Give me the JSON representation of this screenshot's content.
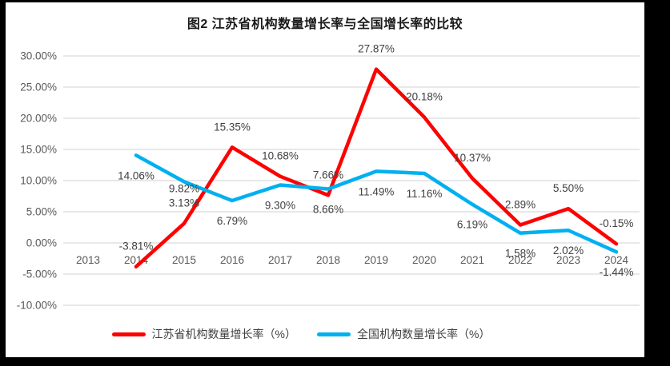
{
  "frame": {
    "background": "#000000"
  },
  "title": "图2  江苏省机构数量增长率与全国增长率的比较",
  "chart_data": {
    "type": "line",
    "categories": [
      "2013",
      "2014",
      "2015",
      "2016",
      "2017",
      "2018",
      "2019",
      "2020",
      "2021",
      "2022",
      "2023",
      "2024"
    ],
    "series": [
      {
        "name": "江苏省机构数量增长率（%）",
        "color": "#fe0000",
        "values": [
          null,
          -3.81,
          3.13,
          15.35,
          10.68,
          7.66,
          27.87,
          20.18,
          10.37,
          2.89,
          5.5,
          -0.15
        ],
        "data_labels": [
          "",
          "-3.81%",
          "3.13%",
          "15.35%",
          "10.68%",
          "7.66%",
          "27.87%",
          "20.18%",
          "10.37%",
          "2.89%",
          "5.50%",
          "-0.15%"
        ],
        "label_side": "above",
        "label_dy_overrides": {}
      },
      {
        "name": "全国机构数量增长率（%）",
        "color": "#00b0f0",
        "values": [
          null,
          14.06,
          9.82,
          6.79,
          9.3,
          8.66,
          11.49,
          11.16,
          6.19,
          1.58,
          2.02,
          -1.44
        ],
        "data_labels": [
          "",
          "14.06%",
          "9.82%",
          "6.79%",
          "9.30%",
          "8.66%",
          "11.49%",
          "11.16%",
          "6.19%",
          "1.58%",
          "2.02%",
          "-1.44%"
        ],
        "label_side": "below",
        "label_dy_overrides": {
          "2": 13
        }
      }
    ],
    "y_ticks": [
      {
        "label": "30.00%",
        "value": 30
      },
      {
        "label": "25.00%",
        "value": 25
      },
      {
        "label": "20.00%",
        "value": 20
      },
      {
        "label": "15.00%",
        "value": 15
      },
      {
        "label": "10.00%",
        "value": 10
      },
      {
        "label": "5.00%",
        "value": 5
      },
      {
        "label": "0.00%",
        "value": 0
      },
      {
        "label": "-5.00%",
        "value": -5
      },
      {
        "label": "-10.00%",
        "value": -10
      }
    ],
    "ylim": [
      -10,
      30
    ],
    "grid": true,
    "legend_position": "bottom"
  },
  "colors": {
    "grid": "#d9d9d9",
    "axis_text": "#595959",
    "data_label_text": "#404040",
    "title_text": "#1a1a1a"
  }
}
